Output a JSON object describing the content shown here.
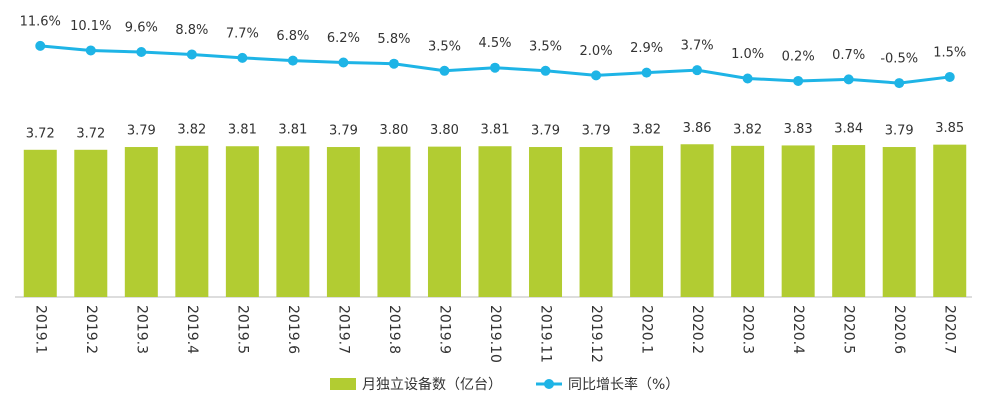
{
  "chart_data": {
    "type": "bar-line",
    "categories": [
      "2019.1",
      "2019.2",
      "2019.3",
      "2019.4",
      "2019.5",
      "2019.6",
      "2019.7",
      "2019.8",
      "2019.9",
      "2019.10",
      "2019.11",
      "2019.12",
      "2020.1",
      "2020.2",
      "2020.3",
      "2020.4",
      "2020.5",
      "2020.6",
      "2020.7"
    ],
    "series": [
      {
        "name": "月独立设备数（亿台）",
        "type": "bar",
        "color": "#b2cc32",
        "values": [
          3.72,
          3.72,
          3.79,
          3.82,
          3.81,
          3.81,
          3.79,
          3.8,
          3.8,
          3.81,
          3.79,
          3.79,
          3.82,
          3.86,
          3.82,
          3.83,
          3.84,
          3.79,
          3.85
        ],
        "value_labels": [
          "3.72",
          "3.72",
          "3.79",
          "3.82",
          "3.81",
          "3.81",
          "3.79",
          "3.80",
          "3.80",
          "3.81",
          "3.79",
          "3.79",
          "3.82",
          "3.86",
          "3.82",
          "3.83",
          "3.84",
          "3.79",
          "3.85"
        ]
      },
      {
        "name": "同比增长率（%）",
        "type": "line",
        "axis": "y2",
        "color": "#1eb4e6",
        "values": [
          11.6,
          10.1,
          9.6,
          8.8,
          7.7,
          6.8,
          6.2,
          5.8,
          3.5,
          4.5,
          3.5,
          2.0,
          2.9,
          3.7,
          1.0,
          0.2,
          0.7,
          -0.5,
          1.5
        ],
        "value_labels": [
          "11.6%",
          "10.1%",
          "9.6%",
          "8.8%",
          "7.7%",
          "6.8%",
          "6.2%",
          "5.8%",
          "3.5%",
          "4.5%",
          "3.5%",
          "2.0%",
          "2.9%",
          "3.7%",
          "1.0%",
          "0.2%",
          "0.7%",
          "-0.5%",
          "1.5%"
        ]
      }
    ],
    "ylim": [
      0,
      7
    ],
    "y2lim": [
      -70,
      20
    ],
    "legend": "bottom"
  }
}
